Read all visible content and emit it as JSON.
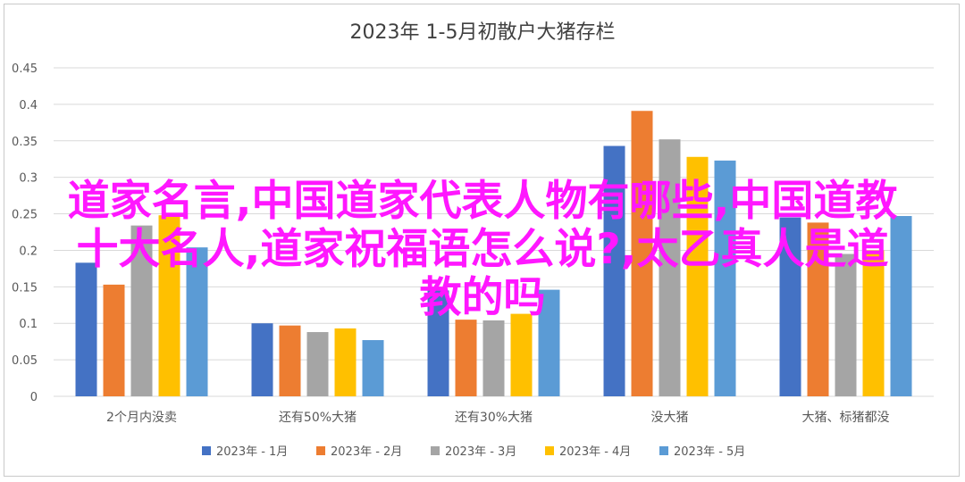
{
  "chart_data": {
    "type": "bar",
    "title": "2023年 1-5月初散户大猪存栏",
    "categories": [
      "2个月内没卖",
      "还有50%大猪",
      "还有30%大猪",
      "没大猪",
      "大猪、标猪都没"
    ],
    "series": [
      {
        "name": "2023年 - 1月",
        "color": "#4472c4",
        "values": [
          0.183,
          0.1,
          0.145,
          0.343,
          0.245
        ]
      },
      {
        "name": "2023年 - 2月",
        "color": "#ed7d31",
        "values": [
          0.153,
          0.097,
          0.105,
          0.391,
          0.238
        ]
      },
      {
        "name": "2023年 - 3月",
        "color": "#a5a5a5",
        "values": [
          0.234,
          0.088,
          0.104,
          0.352,
          0.195
        ]
      },
      {
        "name": "2023年 - 4月",
        "color": "#ffc000",
        "values": [
          0.248,
          0.093,
          0.113,
          0.328,
          0.2
        ]
      },
      {
        "name": "2023年 - 5月",
        "color": "#5b9bd5",
        "values": [
          0.204,
          0.077,
          0.146,
          0.323,
          0.247
        ]
      }
    ],
    "yticks": [
      "0",
      "0.05",
      "0.1",
      "0.15",
      "0.2",
      "0.25",
      "0.3",
      "0.35",
      "0.4",
      "0.45"
    ],
    "ylim": [
      0,
      0.45
    ],
    "grid": true,
    "legend_position": "bottom"
  },
  "overlay": {
    "line1": "道家名言,中国道家代表人物有哪些,中国道教",
    "line2": "十大名人,道家祝福语怎么说?,太乙真人是道",
    "line3": "教的吗"
  },
  "colors": {
    "grid": "#d9d9d9",
    "text": "#595959",
    "overlay": "#ff17ff"
  }
}
